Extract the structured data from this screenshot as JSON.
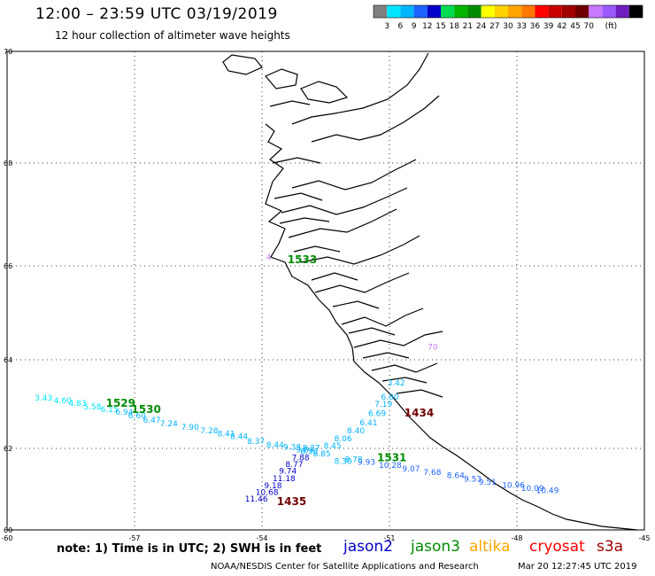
{
  "title": "12:00 – 23:59 UTC 03/19/2019",
  "subtitle": "12 hour collection of altimeter wave heights",
  "colorbar": {
    "colors": [
      "#808080",
      "#00e5ff",
      "#00b4ff",
      "#1e64ff",
      "#0000c8",
      "#00dc50",
      "#00b400",
      "#008c00",
      "#ffff00",
      "#ffd200",
      "#ffa500",
      "#ff7800",
      "#ff0000",
      "#c80000",
      "#a00000",
      "#700000",
      "#c878ff",
      "#9b5aff",
      "#6e1ebe",
      "#000000"
    ],
    "labels": [
      "3",
      "6",
      "9",
      "12",
      "15",
      "18",
      "21",
      "24",
      "27",
      "30",
      "33",
      "36",
      "39",
      "42",
      "45",
      "70",
      "(ft)"
    ]
  },
  "axes": {
    "x_ticks": [
      "-60",
      "-57",
      "-54",
      "-51",
      "-48",
      "-45"
    ],
    "y_ticks": [
      "70",
      "68",
      "66",
      "64",
      "62",
      "60"
    ]
  },
  "tracks": [
    {
      "name": "jason3 1529",
      "time": "1529",
      "time_color": "#008c00",
      "color": "#00e5ff",
      "points": [
        [
          -59.35,
          63.08,
          "3.43"
        ],
        [
          -58.9,
          63.02,
          "4.60"
        ],
        [
          -58.55,
          62.96,
          "4.83"
        ],
        [
          -58.2,
          62.88,
          "5.58"
        ],
        [
          -57.8,
          62.82,
          "6.15"
        ]
      ]
    },
    {
      "name": "jason3 1530",
      "time": "1530",
      "time_color": "#008c00",
      "color": "#00b4ff",
      "points": [
        [
          -57.45,
          62.76,
          "6.94"
        ],
        [
          -57.15,
          62.68,
          "6.60"
        ],
        [
          -56.8,
          62.58,
          "6.47"
        ],
        [
          -56.4,
          62.5,
          "7.24"
        ],
        [
          -55.9,
          62.42,
          "7.90"
        ],
        [
          -55.45,
          62.34,
          "7.28"
        ],
        [
          -55.05,
          62.27,
          "8.41"
        ],
        [
          -54.75,
          62.21,
          "8.44"
        ],
        [
          -54.35,
          62.1,
          "8.37"
        ],
        [
          -53.9,
          62.02,
          "8.44"
        ],
        [
          -53.5,
          61.97,
          "9.38"
        ]
      ]
    },
    {
      "name": "jason3 1531",
      "time": "1531",
      "time_color": "#008c00",
      "color": "#1e64ff",
      "points": [
        [
          -51.75,
          61.6,
          "9.93"
        ],
        [
          -51.25,
          61.52,
          "10.28"
        ],
        [
          -50.7,
          61.44,
          "9.07"
        ],
        [
          -50.2,
          61.35,
          "7.68"
        ],
        [
          -49.65,
          61.27,
          "8.64"
        ],
        [
          -49.25,
          61.19,
          "9.53"
        ],
        [
          -48.9,
          61.11,
          "9.51"
        ],
        [
          -48.35,
          61.03,
          "10.96"
        ],
        [
          -47.9,
          60.96,
          "10.09"
        ],
        [
          -47.55,
          60.9,
          "10.49"
        ]
      ]
    },
    {
      "name": "jason2 ascending",
      "time": "",
      "time_color": "#0000c8",
      "color": "#00b4ff",
      "points": [
        [
          -53.2,
          61.9,
          "9.83"
        ],
        [
          -53.1,
          61.86,
          "8.58"
        ],
        [
          -52.8,
          61.8,
          "8.85"
        ],
        [
          -52.55,
          62.0,
          "8.45"
        ],
        [
          -52.3,
          62.16,
          "8.06"
        ],
        [
          -52.0,
          62.34,
          "8.40"
        ],
        [
          -51.7,
          62.52,
          "6.41"
        ],
        [
          -51.5,
          62.73,
          "6.69"
        ],
        [
          -51.35,
          62.94,
          "7.19"
        ],
        [
          -51.2,
          63.1,
          "6.80"
        ],
        [
          -51.05,
          63.42,
          "3.42"
        ]
      ]
    },
    {
      "name": "jason2 descending",
      "time": "1435",
      "time_color": "#700000",
      "color": "#0000c8",
      "points": [
        [
          -53.3,
          61.71,
          "7.88"
        ],
        [
          -53.45,
          61.54,
          "8.77"
        ],
        [
          -53.6,
          61.38,
          "9.74"
        ],
        [
          -53.75,
          61.2,
          "11.18"
        ],
        [
          -53.95,
          61.02,
          "9.18"
        ],
        [
          -54.15,
          60.86,
          "10.68"
        ],
        [
          -54.4,
          60.7,
          "11.46"
        ]
      ]
    },
    {
      "name": "cryosat",
      "time": "1434",
      "time_color": "#700000",
      "color": "#ff0000",
      "points": [
        [
          -50.65,
          62.88,
          ""
        ]
      ]
    },
    {
      "name": "s3a 1533",
      "time": "1533",
      "time_color": "#008c00",
      "color": "#c878ff",
      "points": [
        [
          -53.9,
          66.12,
          "4."
        ]
      ]
    },
    {
      "name": "s3a 1536",
      "time": "",
      "time_color": "#c878ff",
      "color": "#c878ff",
      "points": [
        [
          -50.1,
          64.22,
          "70"
        ]
      ]
    },
    {
      "name": "jason2 teal",
      "time": "",
      "time_color": "#00b4ff",
      "color": "#00b4ff",
      "points": [
        [
          -52.3,
          61.62,
          "8.30"
        ],
        [
          -52.05,
          61.66,
          "8.78"
        ],
        [
          -53.05,
          61.95,
          "8.27"
        ]
      ]
    }
  ],
  "note": "note: 1) Time is in UTC; 2) SWH is in feet",
  "legend": [
    {
      "label": "jason2",
      "color": "#0000c8"
    },
    {
      "label": "jason3",
      "color": "#008c00"
    },
    {
      "label": "altika",
      "color": "#ffa500"
    },
    {
      "label": "cryosat",
      "color": "#ff0000"
    },
    {
      "label": "s3a",
      "color": "#a00000"
    }
  ],
  "footer": {
    "left": "NOAA/NESDIS Center for Satellite Applications and Research",
    "right": "Mar 20 12:27:45 UTC 2019"
  }
}
